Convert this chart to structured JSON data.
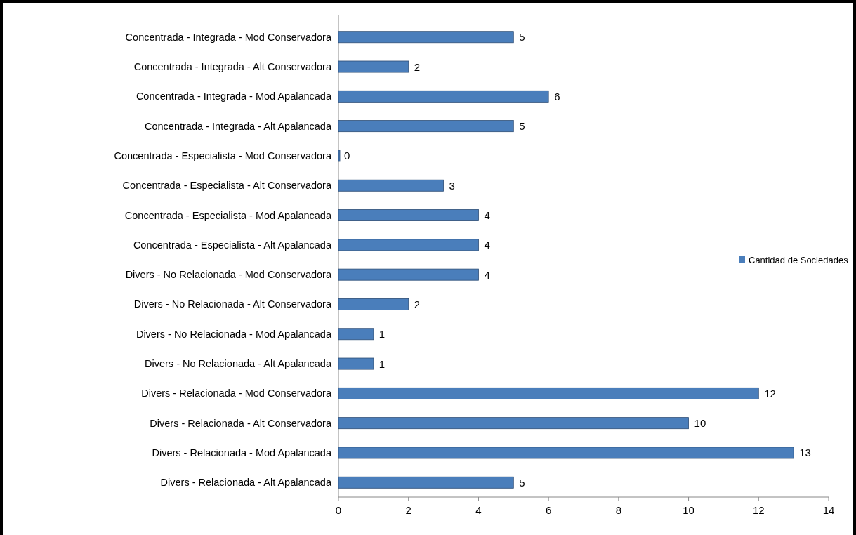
{
  "chart_data": {
    "type": "bar",
    "orientation": "horizontal",
    "categories": [
      "Concentrada - Integrada - Mod Conservadora",
      "Concentrada - Integrada - Alt Conservadora",
      "Concentrada - Integrada - Mod Apalancada",
      "Concentrada - Integrada - Alt Apalancada",
      "Concentrada - Especialista - Mod Conservadora",
      "Concentrada - Especialista - Alt Conservadora",
      "Concentrada - Especialista - Mod Apalancada",
      "Concentrada - Especialista - Alt Apalancada",
      "Divers - No Relacionada - Mod Conservadora",
      "Divers - No Relacionada - Alt Conservadora",
      "Divers - No Relacionada - Mod Apalancada",
      "Divers - No Relacionada - Alt Apalancada",
      "Divers - Relacionada - Mod Conservadora",
      "Divers - Relacionada - Alt Conservadora",
      "Divers - Relacionada - Mod Apalancada",
      "Divers - Relacionada - Alt Apalancada"
    ],
    "series": [
      {
        "name": "Cantidad de Sociedades",
        "color": "#4a7ebb",
        "values": [
          5,
          2,
          6,
          5,
          0,
          3,
          4,
          4,
          4,
          2,
          1,
          1,
          12,
          10,
          13,
          5
        ]
      }
    ],
    "xlim": [
      0,
      14
    ],
    "xticks": [
      0,
      2,
      4,
      6,
      8,
      10,
      12,
      14
    ],
    "data_labels": true,
    "legend": "right",
    "grid": false
  }
}
